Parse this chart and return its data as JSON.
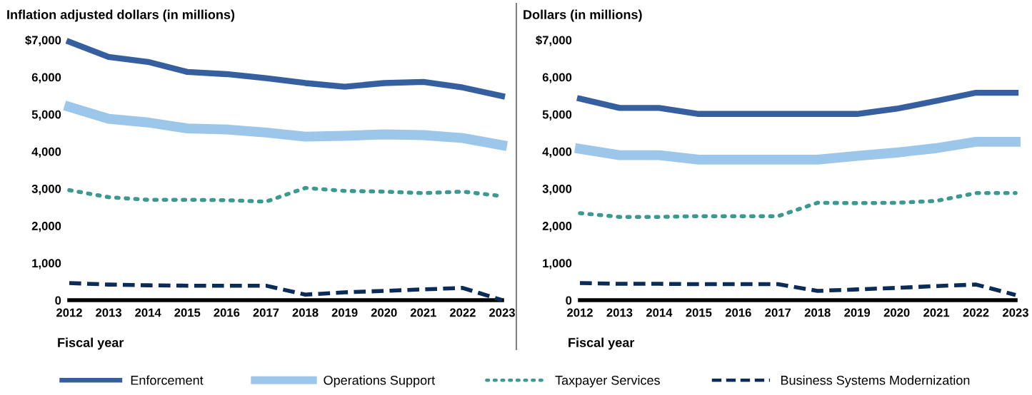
{
  "chart_data": [
    {
      "type": "line",
      "title": "Inflation adjusted dollars (in millions)",
      "xlabel": "Fiscal year",
      "categories": [
        "2012",
        "2013",
        "2014",
        "2015",
        "2016",
        "2017",
        "2018",
        "2019",
        "2020",
        "2021",
        "2022",
        "2023"
      ],
      "ylim": [
        0,
        7000
      ],
      "yticks": [
        0,
        {
          "value": 1000,
          "label": "1,000"
        },
        {
          "value": 2000,
          "label": "2,000"
        },
        {
          "value": 3000,
          "label": "3,000"
        },
        {
          "value": 4000,
          "label": "4,000"
        },
        {
          "value": 5000,
          "label": "5,000"
        },
        {
          "value": 6000,
          "label": "6,000"
        },
        {
          "value": 7000,
          "label": "$7,000"
        }
      ],
      "grid": false,
      "legend": "bottom",
      "series": [
        {
          "name": "Enforcement",
          "color": "#365f9f",
          "line_style": "solid",
          "values": [
            6950,
            6540,
            6410,
            6140,
            6080,
            5970,
            5840,
            5740,
            5840,
            5870,
            5720,
            5490
          ]
        },
        {
          "name": "Operations Support",
          "color": "#9dc7ea",
          "line_style": "solid",
          "values": [
            5200,
            4880,
            4780,
            4620,
            4590,
            4510,
            4400,
            4420,
            4460,
            4440,
            4360,
            4170
          ]
        },
        {
          "name": "Taxpayer Services",
          "color": "#3a9a8e",
          "line_style": "dotted",
          "values": [
            2960,
            2770,
            2700,
            2700,
            2690,
            2650,
            3020,
            2940,
            2920,
            2880,
            2920,
            2800
          ]
        },
        {
          "name": "Business Systems Modernization",
          "color": "#0b2c5a",
          "line_style": "dashed",
          "values": [
            460,
            420,
            400,
            390,
            390,
            390,
            150,
            210,
            250,
            290,
            330,
            0
          ]
        }
      ]
    },
    {
      "type": "line",
      "title": "Dollars (in millions)",
      "xlabel": "Fiscal year",
      "categories": [
        "2012",
        "2013",
        "2014",
        "2015",
        "2016",
        "2017",
        "2018",
        "2019",
        "2020",
        "2021",
        "2022",
        "2023"
      ],
      "ylim": [
        0,
        7000
      ],
      "yticks": [
        0,
        {
          "value": 1000,
          "label": "1,000"
        },
        {
          "value": 2000,
          "label": "2,000"
        },
        {
          "value": 3000,
          "label": "3,000"
        },
        {
          "value": 4000,
          "label": "4,000"
        },
        {
          "value": 5000,
          "label": "5,000"
        },
        {
          "value": 6000,
          "label": "6,000"
        },
        {
          "value": 7000,
          "label": "$7,000"
        }
      ],
      "grid": false,
      "series": [
        {
          "color": "#365f9f",
          "line_style": "solid",
          "values": [
            5420,
            5170,
            5170,
            5010,
            5010,
            5010,
            5010,
            5010,
            5150,
            5360,
            5580,
            5580
          ]
        },
        {
          "color": "#9dc7ea",
          "line_style": "solid",
          "values": [
            4070,
            3900,
            3900,
            3780,
            3780,
            3780,
            3780,
            3880,
            3970,
            4090,
            4260,
            4260
          ]
        },
        {
          "color": "#3a9a8e",
          "line_style": "dotted",
          "values": [
            2340,
            2240,
            2240,
            2260,
            2260,
            2260,
            2620,
            2610,
            2620,
            2670,
            2880,
            2880
          ]
        },
        {
          "color": "#0b2c5a",
          "line_style": "dashed",
          "values": [
            460,
            440,
            440,
            430,
            430,
            430,
            250,
            290,
            330,
            380,
            420,
            140
          ]
        }
      ]
    }
  ]
}
